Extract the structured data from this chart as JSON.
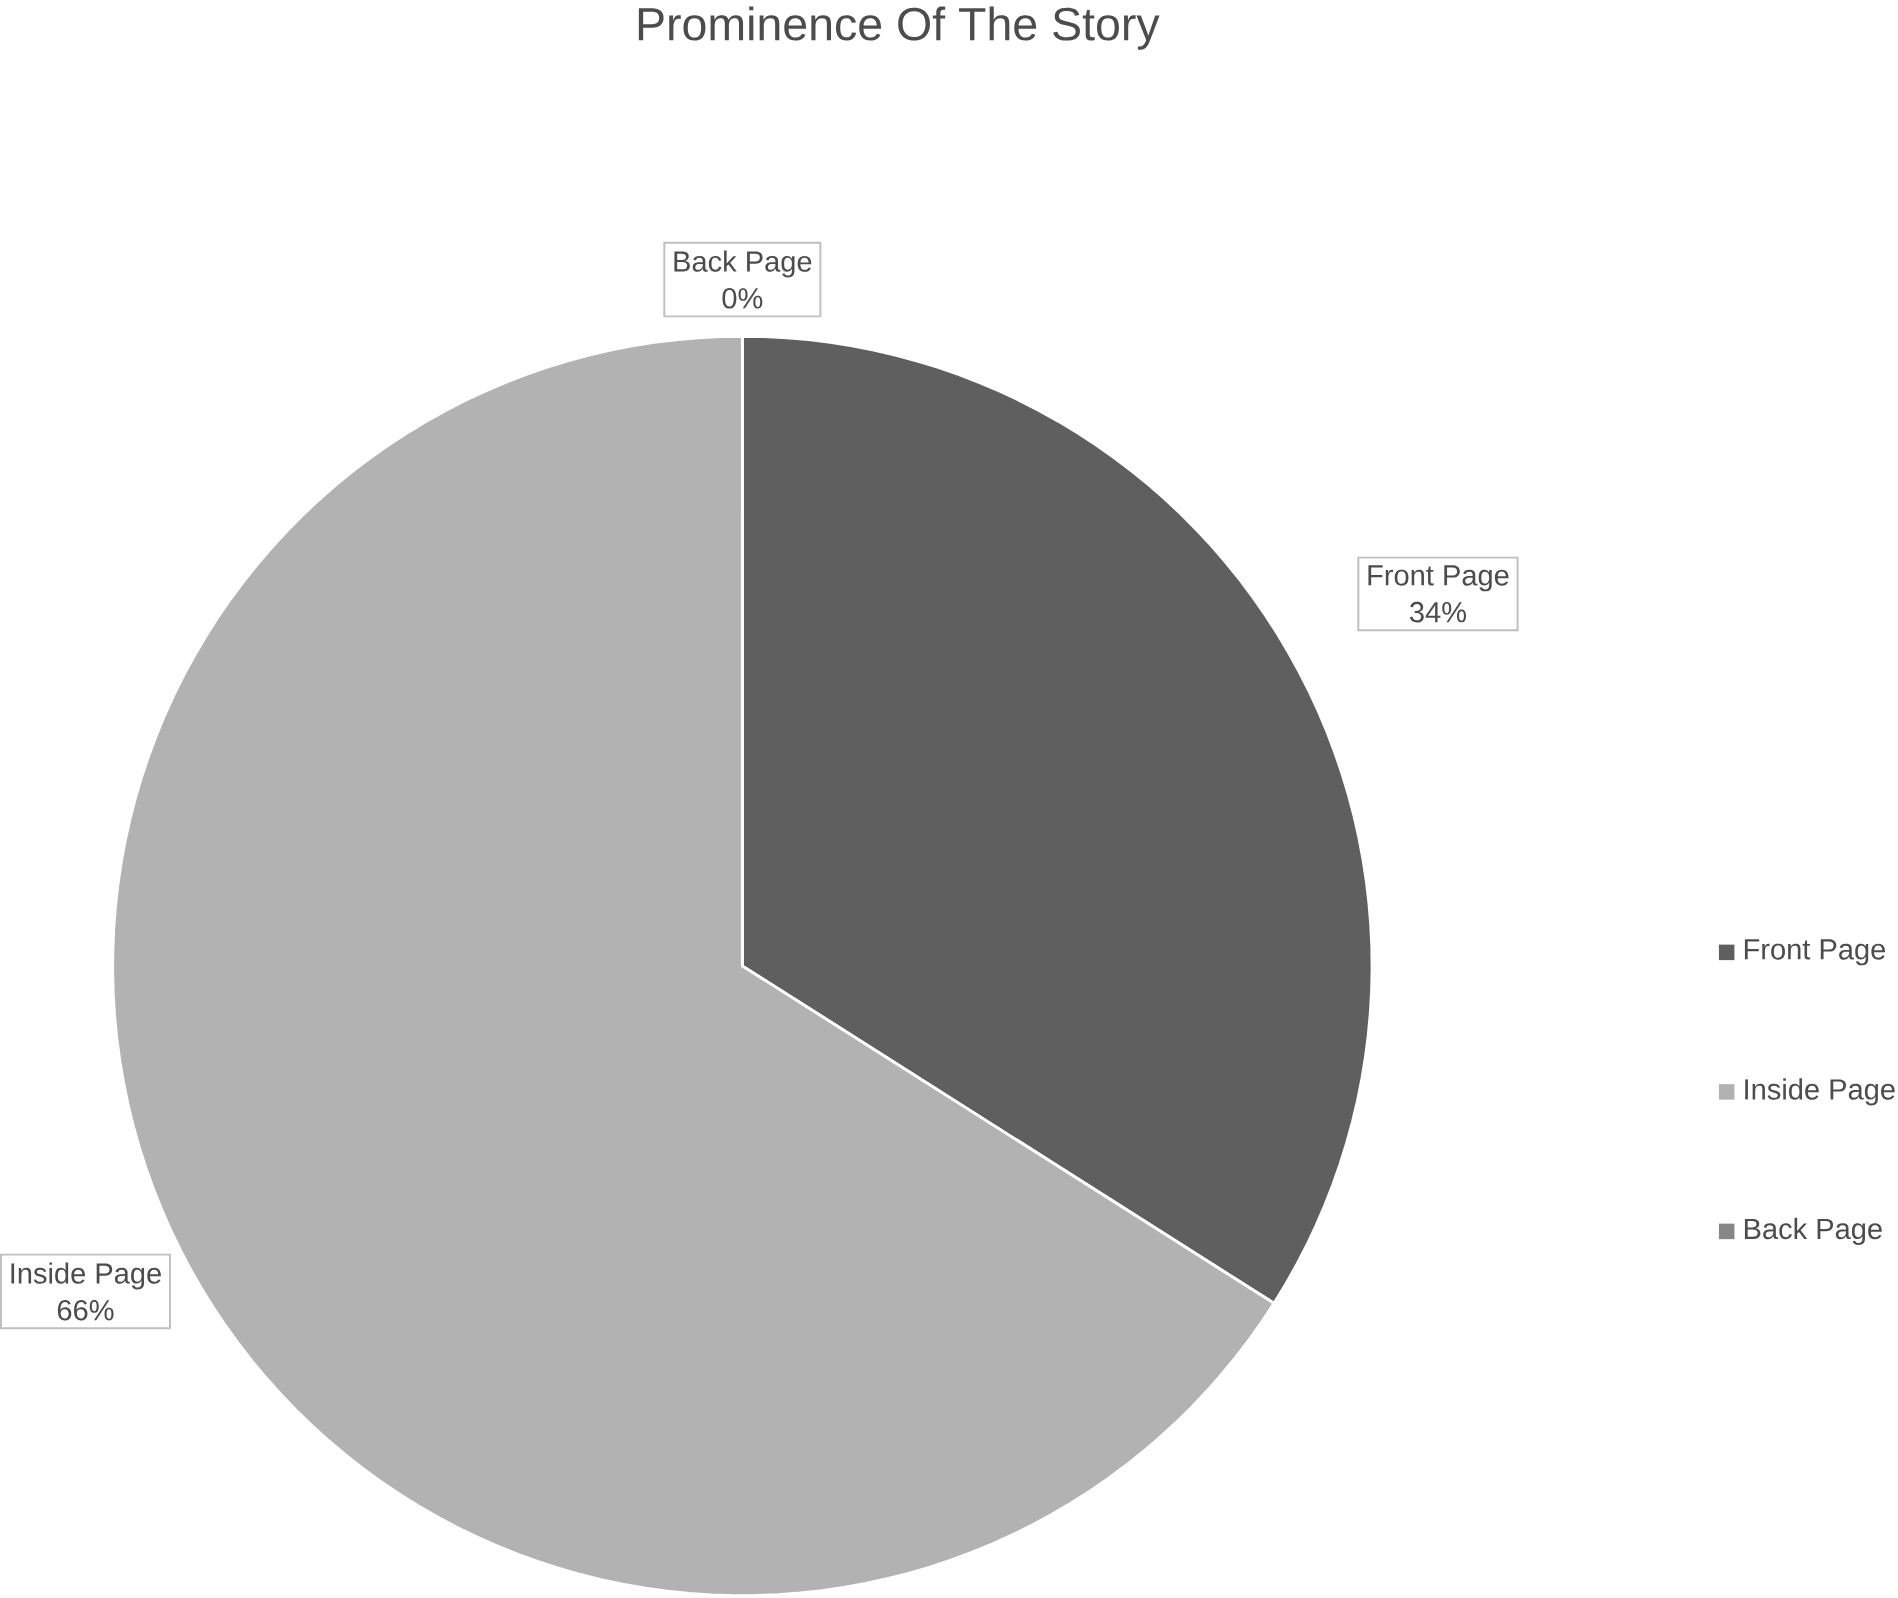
{
  "chart_data": {
    "type": "pie",
    "title": "Prominence Of The Story",
    "categories": [
      "Front Page",
      "Inside Page",
      "Back Page"
    ],
    "values": [
      34,
      66,
      0
    ],
    "value_labels": [
      "34%",
      "66%",
      "0%"
    ],
    "colors": [
      "#5f5f5f",
      "#b2b2b2",
      "#878787"
    ],
    "legend": "right"
  }
}
